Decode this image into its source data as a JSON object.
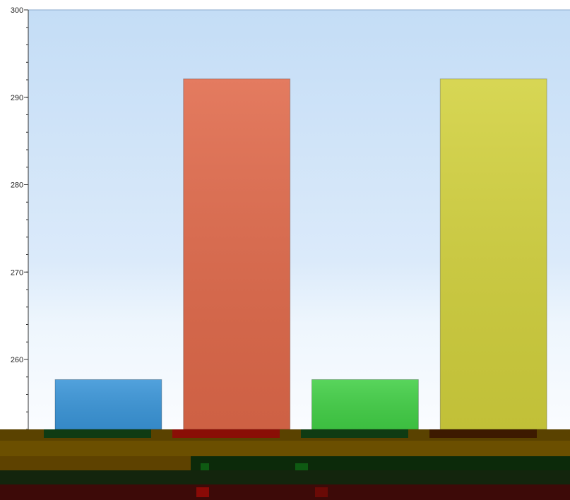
{
  "chart_data": {
    "type": "bar",
    "categories": [
      "",
      "",
      "",
      ""
    ],
    "values": [
      257.7,
      292.1,
      257.7,
      292.1
    ],
    "colors": [
      "#3a95d8",
      "#e0694a",
      "#42cf46",
      "#d2d13d"
    ],
    "ylim": [
      252,
      300
    ],
    "yticks": [
      260,
      270,
      280,
      290,
      300
    ],
    "ytick_labels": [
      "260",
      "270",
      "280",
      "290",
      "300"
    ],
    "grid": false,
    "legend": "none",
    "title": "",
    "xlabel": "",
    "ylabel": ""
  }
}
